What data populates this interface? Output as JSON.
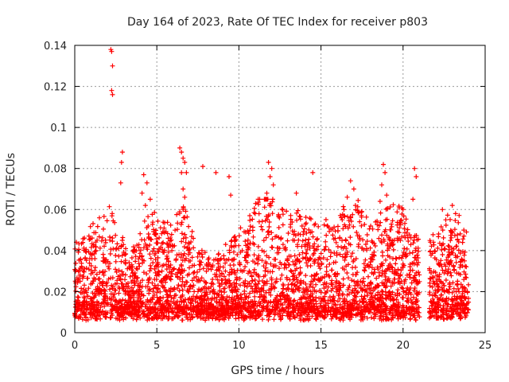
{
  "chart_data": {
    "type": "scatter",
    "title": "Day 164 of 2023, Rate Of TEC Index for receiver p803",
    "xlabel": "GPS time / hours",
    "ylabel": "ROTI / TECUs",
    "xlim": [
      0,
      25
    ],
    "ylim": [
      0,
      0.14
    ],
    "x_ticks": [
      0,
      5,
      10,
      15,
      20,
      25
    ],
    "x_tick_labels": [
      "0",
      "5",
      "10",
      "15",
      "20",
      "25"
    ],
    "y_ticks": [
      0,
      0.02,
      0.04,
      0.06,
      0.08,
      0.1,
      0.12,
      0.14
    ],
    "y_tick_labels": [
      "0",
      "0.02",
      "0.04",
      "0.06",
      "0.08",
      "0.1",
      "0.12",
      "0.14"
    ],
    "grid": true,
    "marker": "+",
    "marker_color": "#ff0000",
    "series": [
      {
        "name": "ROTI",
        "gaps": [
          [
            21.0,
            21.6
          ],
          [
            24.0,
            25.0
          ]
        ],
        "points": [
          [
            2.2,
            0.138
          ],
          [
            2.25,
            0.137
          ],
          [
            2.3,
            0.13
          ],
          [
            2.25,
            0.118
          ],
          [
            2.3,
            0.116
          ],
          [
            2.9,
            0.088
          ],
          [
            2.85,
            0.083
          ],
          [
            2.8,
            0.073
          ],
          [
            6.4,
            0.09
          ],
          [
            6.5,
            0.088
          ],
          [
            6.6,
            0.085
          ],
          [
            6.7,
            0.083
          ],
          [
            6.5,
            0.078
          ],
          [
            6.8,
            0.078
          ],
          [
            6.6,
            0.07
          ],
          [
            6.7,
            0.066
          ],
          [
            6.6,
            0.06
          ],
          [
            6.7,
            0.056
          ],
          [
            4.2,
            0.077
          ],
          [
            4.4,
            0.073
          ],
          [
            4.6,
            0.065
          ],
          [
            4.3,
            0.062
          ],
          [
            4.1,
            0.068
          ],
          [
            7.8,
            0.081
          ],
          [
            8.6,
            0.078
          ],
          [
            9.4,
            0.076
          ],
          [
            9.5,
            0.067
          ],
          [
            11.8,
            0.083
          ],
          [
            12.0,
            0.08
          ],
          [
            11.9,
            0.076
          ],
          [
            12.1,
            0.072
          ],
          [
            11.7,
            0.068
          ],
          [
            11.9,
            0.063
          ],
          [
            14.5,
            0.078
          ],
          [
            13.5,
            0.068
          ],
          [
            16.8,
            0.074
          ],
          [
            17.0,
            0.07
          ],
          [
            16.6,
            0.066
          ],
          [
            17.1,
            0.062
          ],
          [
            16.4,
            0.06
          ],
          [
            18.8,
            0.082
          ],
          [
            18.9,
            0.078
          ],
          [
            18.7,
            0.072
          ],
          [
            19.0,
            0.067
          ],
          [
            18.6,
            0.064
          ],
          [
            20.7,
            0.08
          ],
          [
            20.8,
            0.076
          ],
          [
            20.6,
            0.065
          ],
          [
            20.0,
            0.06
          ],
          [
            22.4,
            0.06
          ],
          [
            23.0,
            0.062
          ],
          [
            23.2,
            0.058
          ],
          [
            22.6,
            0.055
          ],
          [
            23.7,
            0.05
          ]
        ]
      }
    ]
  }
}
